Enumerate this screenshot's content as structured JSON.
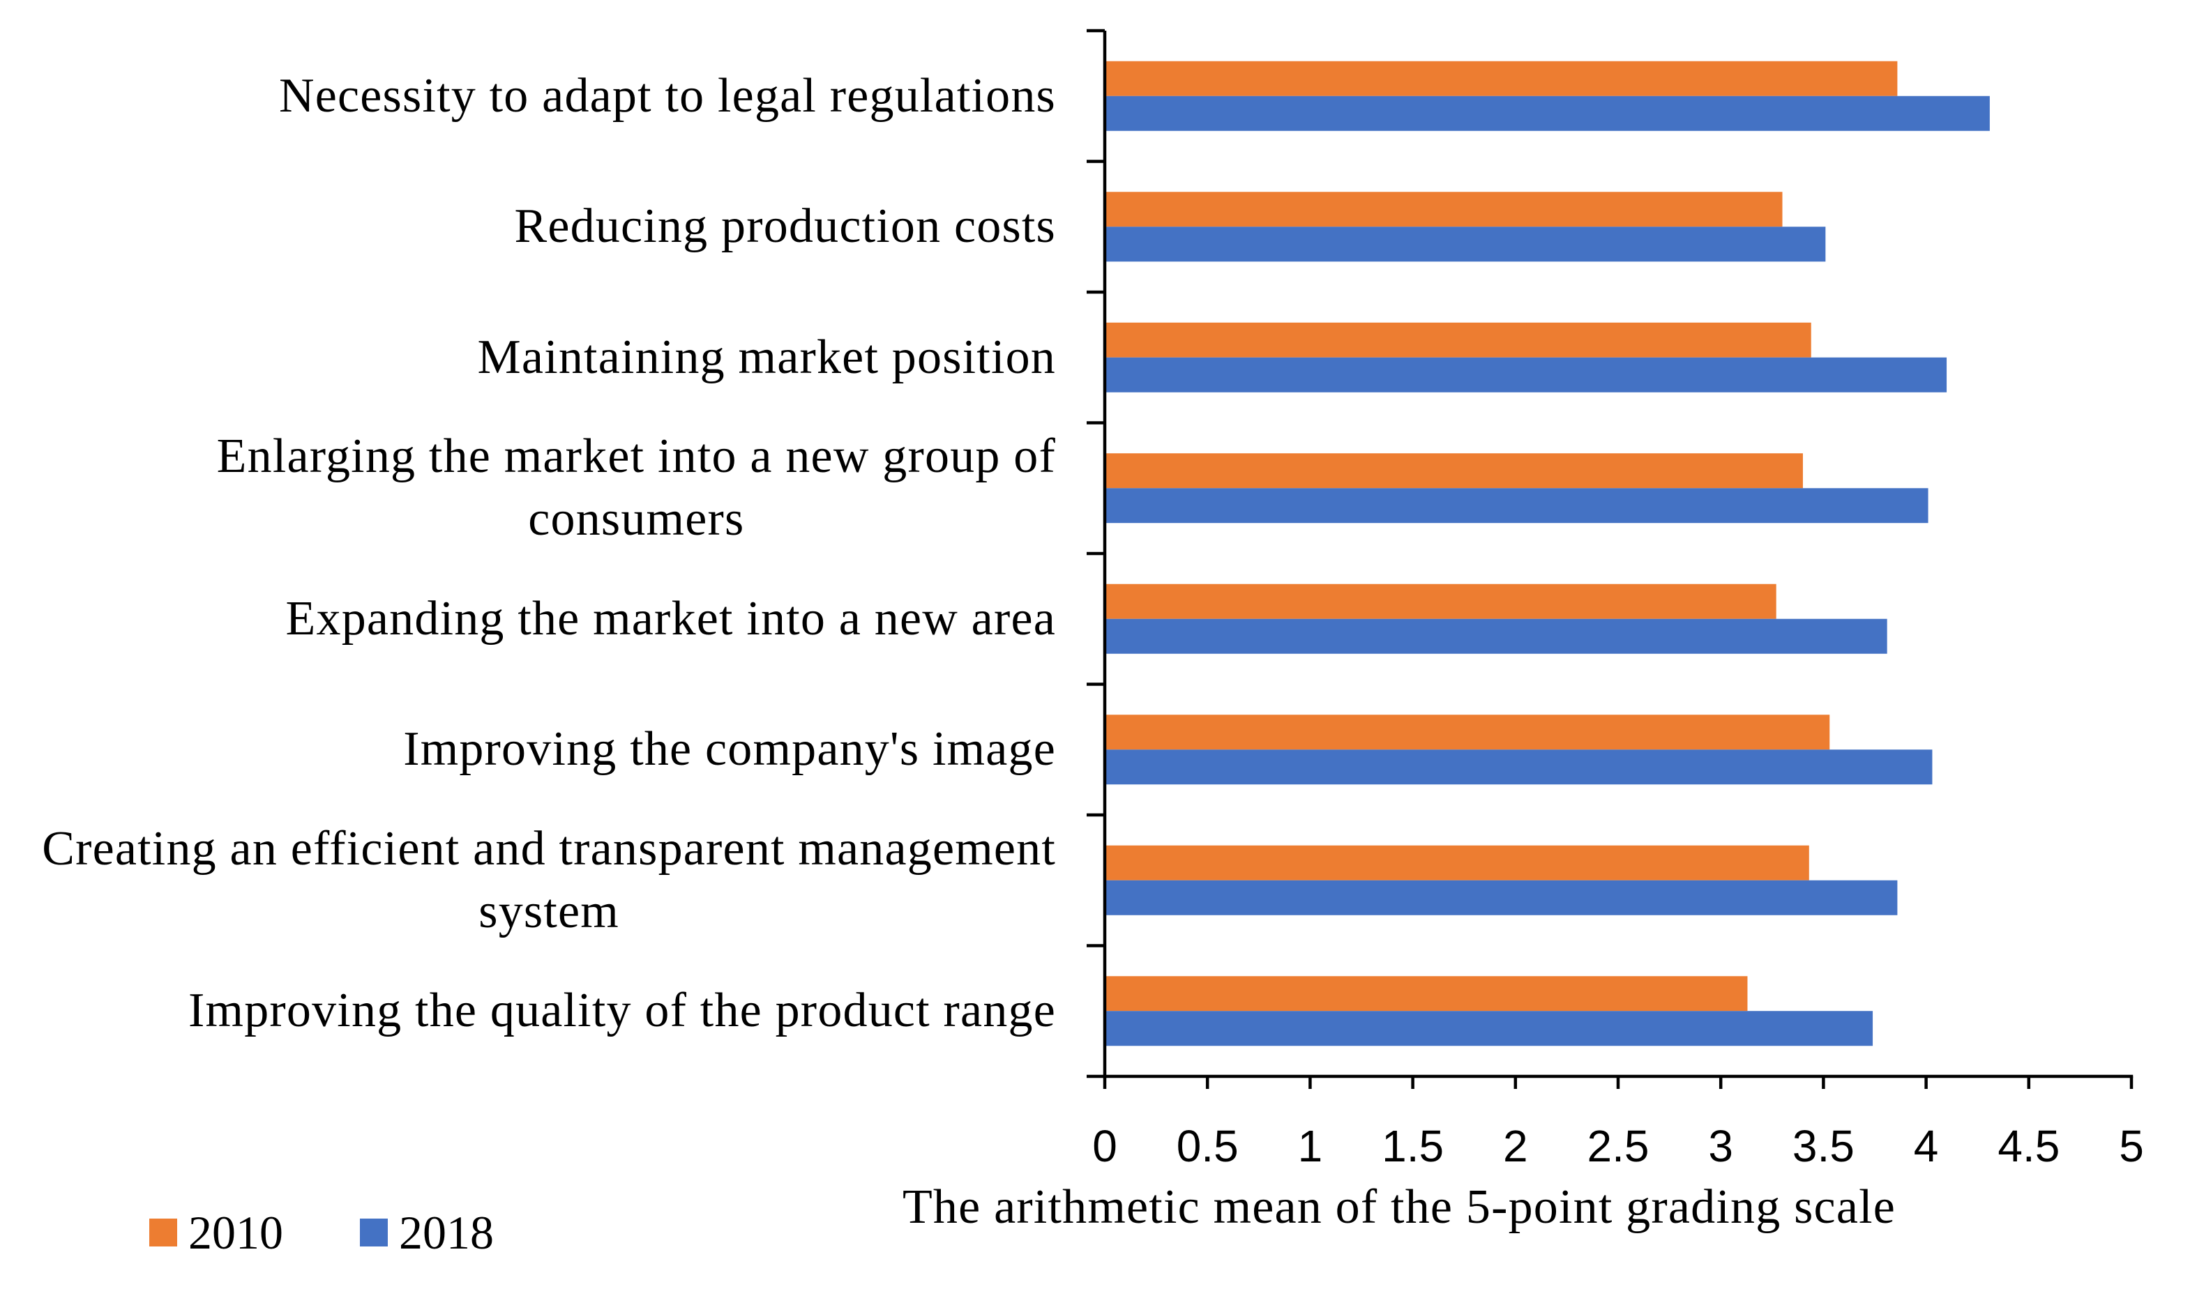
{
  "chart_data": {
    "type": "bar",
    "orientation": "horizontal",
    "categories": [
      "Necessity to adapt to legal regulations",
      "Reducing production costs",
      "Maintaining market position",
      "Enlarging the market into a new group of\nconsumers",
      "Expanding the market into a new area",
      "Improving the company's image",
      "Creating an efficient and transparent management\nsystem",
      "Improving the quality of the product range"
    ],
    "series": [
      {
        "name": "2010",
        "color": "#ED7D31",
        "values": [
          3.86,
          3.3,
          3.44,
          3.4,
          3.27,
          3.53,
          3.43,
          3.13
        ]
      },
      {
        "name": "2018",
        "color": "#4472C4",
        "values": [
          4.31,
          3.51,
          4.1,
          4.01,
          3.81,
          4.03,
          3.86,
          3.74
        ]
      }
    ],
    "xlabel": "The arithmetic mean of the 5-point grading scale",
    "xlim": [
      0,
      5
    ],
    "xticks": [
      0,
      0.5,
      1,
      1.5,
      2,
      2.5,
      3,
      3.5,
      4,
      4.5,
      5
    ],
    "grid": false,
    "legend_position": "bottom-left"
  }
}
